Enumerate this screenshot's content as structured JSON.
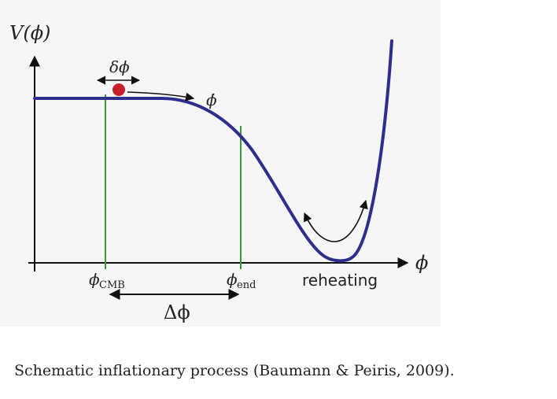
{
  "diagram": {
    "y_axis_label": "V(ϕ)",
    "x_axis_label": "ϕ",
    "labels": {
      "delta_phi": "δϕ",
      "phi_dot": "ϕ̇",
      "phi_cmb": "ϕ",
      "phi_cmb_sub": "CMB",
      "phi_end": "ϕ",
      "phi_end_sub": "end",
      "reheating": "reheating",
      "Delta_phi": "Δϕ"
    },
    "colors": {
      "potential_curve": "#2e2f8c",
      "marker_lines": "#3a9a3a",
      "field_ball": "#c8202a",
      "axes": "#111111",
      "panel_background": "#f6f6f6"
    }
  },
  "caption": "Schematic inflationary process (Baumann & Peiris, 2009)."
}
